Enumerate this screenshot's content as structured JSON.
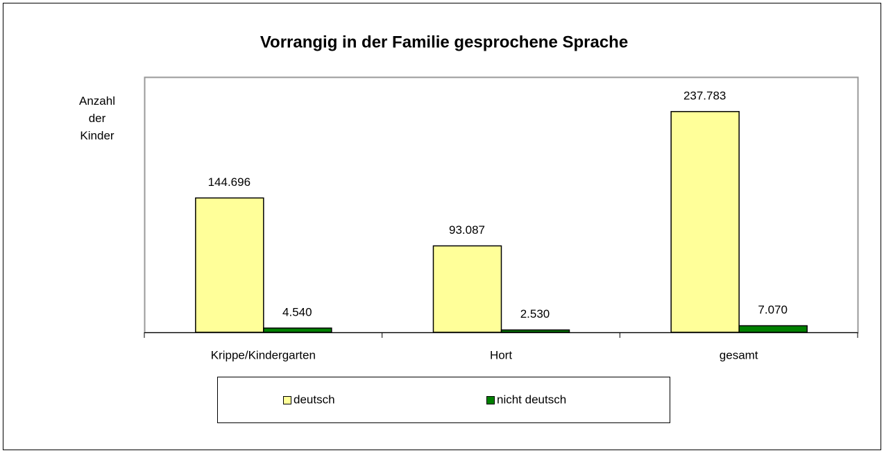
{
  "chart_data": {
    "type": "bar",
    "title": "Vorrangig in der Familie gesprochene Sprache",
    "ylabel": "Anzahl der Kinder",
    "categories": [
      "Krippe/Kindergarten",
      "Hort",
      "gesamt"
    ],
    "series": [
      {
        "name": "deutsch",
        "color": "#ffff99",
        "values": [
          144696,
          93087,
          237783
        ],
        "value_labels": [
          "144.696",
          "93.087",
          "237.783"
        ]
      },
      {
        "name": "nicht deutsch",
        "color": "#008000",
        "values": [
          4540,
          2530,
          7070
        ],
        "value_labels": [
          "4.540",
          "2.530",
          "7.070"
        ]
      }
    ],
    "ylim": [
      0,
      275000
    ]
  }
}
